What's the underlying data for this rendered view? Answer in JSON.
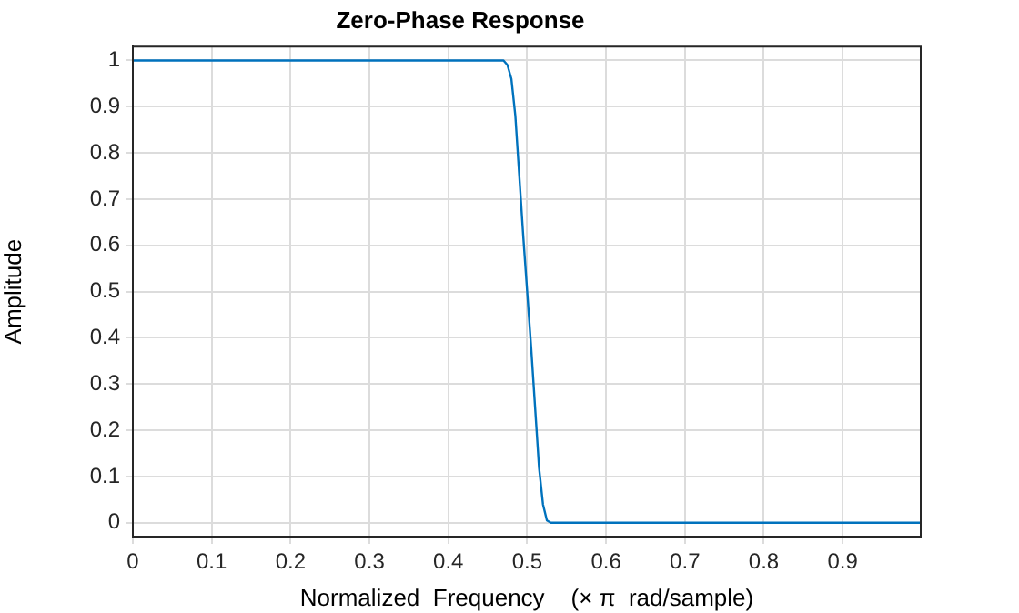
{
  "chart_data": {
    "type": "line",
    "title": "Zero-Phase Response",
    "xlabel": "Normalized  Frequency    (× π  rad/sample)",
    "ylabel": "Amplitude",
    "series": [
      {
        "color": "#0072bd",
        "x": [
          0,
          0.1,
          0.2,
          0.3,
          0.4,
          0.47,
          0.475,
          0.48,
          0.485,
          0.49,
          0.495,
          0.5,
          0.505,
          0.51,
          0.515,
          0.52,
          0.525,
          0.53,
          0.6,
          0.7,
          0.8,
          0.9,
          0.999
        ],
        "values": [
          1,
          1,
          1,
          1,
          1,
          1,
          0.99,
          0.96,
          0.88,
          0.75,
          0.62,
          0.5,
          0.38,
          0.25,
          0.12,
          0.04,
          0.005,
          0,
          0,
          0,
          0,
          0,
          0
        ]
      }
    ],
    "xlim": [
      0,
      0.999
    ],
    "xticks": [
      0,
      0.1,
      0.2,
      0.3,
      0.4,
      0.5,
      0.6,
      0.7,
      0.8,
      0.9
    ],
    "ylim": [
      -0.03,
      1.03
    ],
    "yticks": [
      0,
      0.1,
      0.2,
      0.3,
      0.4,
      0.5,
      0.6,
      0.7,
      0.8,
      0.9,
      1
    ],
    "grid": true,
    "legend": false,
    "marker": "none",
    "line_style": "solid"
  }
}
